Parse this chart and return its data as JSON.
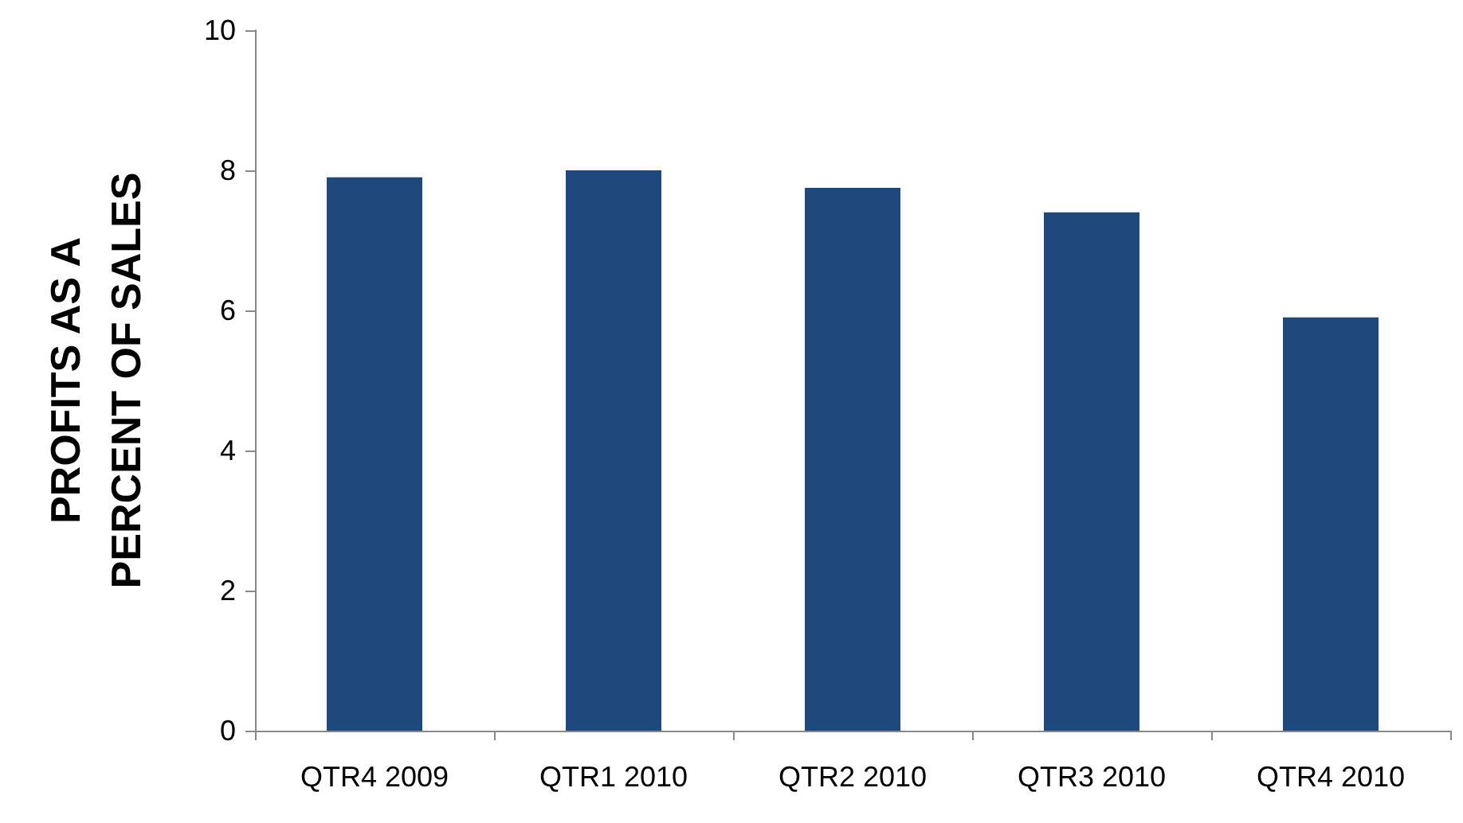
{
  "chart_data": {
    "type": "bar",
    "ylabel": "PROFITS AS A\nPERCENT OF SALES",
    "categories": [
      "QTR4 2009",
      "QTR1 2010",
      "QTR2 2010",
      "QTR3 2010",
      "QTR4 2010"
    ],
    "values": [
      7.9,
      8.0,
      7.75,
      7.4,
      5.9
    ],
    "color": "#1f497d",
    "ylim": [
      0,
      10
    ],
    "yticks": [
      0,
      2,
      4,
      6,
      8,
      10
    ],
    "grid": false
  }
}
